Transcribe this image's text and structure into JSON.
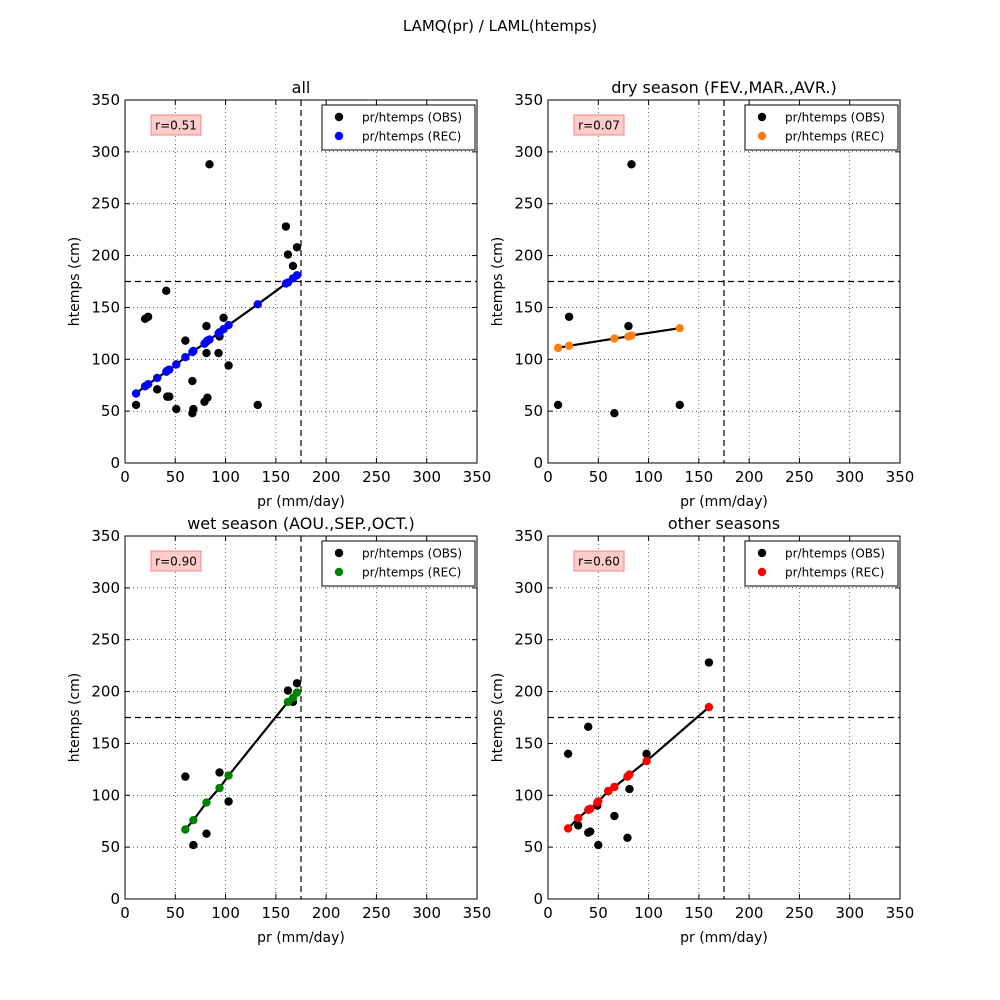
{
  "suptitle": "LAMQ(pr) / LAML(htemps)",
  "chart_data": [
    {
      "type": "scatter",
      "title": "all",
      "xlabel": "pr (mm/day)",
      "ylabel": "htemps (cm)",
      "xlim": [
        0,
        350
      ],
      "ylim": [
        0,
        350
      ],
      "xticks": [
        0,
        50,
        100,
        150,
        200,
        250,
        300,
        350
      ],
      "yticks": [
        0,
        50,
        100,
        150,
        200,
        250,
        300,
        350
      ],
      "grid": true,
      "legend_position": "top-right",
      "correlation_label": "r=0.51",
      "threshold_x": 175,
      "threshold_y": 175,
      "series": [
        {
          "name": "pr/htemps (OBS)",
          "color": "#000000",
          "kind": "scatter",
          "points": [
            [
              11,
              56
            ],
            [
              20,
              139
            ],
            [
              23,
              141
            ],
            [
              32,
              71
            ],
            [
              41,
              166
            ],
            [
              42,
              64
            ],
            [
              44,
              64
            ],
            [
              51,
              52
            ],
            [
              60,
              118
            ],
            [
              67,
              79
            ],
            [
              67,
              48
            ],
            [
              68,
              52
            ],
            [
              79,
              59
            ],
            [
              81,
              132
            ],
            [
              81,
              106
            ],
            [
              82,
              63
            ],
            [
              84,
              288
            ],
            [
              93,
              106
            ],
            [
              94,
              122
            ],
            [
              98,
              140
            ],
            [
              103,
              94
            ],
            [
              132,
              56
            ],
            [
              160,
              228
            ],
            [
              162,
              201
            ],
            [
              167,
              190
            ],
            [
              171,
              208
            ]
          ]
        },
        {
          "name": "pr/htemps (REC)",
          "color": "#0000ff",
          "kind": "scatter-fit",
          "points": [
            [
              11,
              67
            ],
            [
              20,
              74
            ],
            [
              23,
              76
            ],
            [
              32,
              82
            ],
            [
              41,
              88
            ],
            [
              42,
              89
            ],
            [
              44,
              90
            ],
            [
              51,
              95
            ],
            [
              60,
              102
            ],
            [
              67,
              107
            ],
            [
              68,
              108
            ],
            [
              79,
              115
            ],
            [
              81,
              117
            ],
            [
              82,
              118
            ],
            [
              84,
              119
            ],
            [
              93,
              125
            ],
            [
              94,
              126
            ],
            [
              98,
              129
            ],
            [
              103,
              133
            ],
            [
              132,
              153
            ],
            [
              160,
              173
            ],
            [
              162,
              174
            ],
            [
              167,
              178
            ],
            [
              171,
              181
            ]
          ]
        }
      ]
    },
    {
      "type": "scatter",
      "title": "dry season (FEV.,MAR.,AVR.)",
      "xlabel": "pr (mm/day)",
      "ylabel": "htemps (cm)",
      "xlim": [
        0,
        350
      ],
      "ylim": [
        0,
        350
      ],
      "xticks": [
        0,
        50,
        100,
        150,
        200,
        250,
        300,
        350
      ],
      "yticks": [
        0,
        50,
        100,
        150,
        200,
        250,
        300,
        350
      ],
      "grid": true,
      "legend_position": "top-right",
      "correlation_label": "r=0.07",
      "threshold_x": 175,
      "threshold_y": 175,
      "series": [
        {
          "name": "pr/htemps (OBS)",
          "color": "#000000",
          "kind": "scatter",
          "points": [
            [
              10,
              56
            ],
            [
              21,
              141
            ],
            [
              66,
              48
            ],
            [
              80,
              132
            ],
            [
              83,
              288
            ],
            [
              131,
              56
            ]
          ]
        },
        {
          "name": "pr/htemps (REC)",
          "color": "#ff7f0e",
          "kind": "scatter-fit",
          "points": [
            [
              10,
              111
            ],
            [
              21,
              113
            ],
            [
              66,
              120
            ],
            [
              80,
              122
            ],
            [
              83,
              123
            ],
            [
              131,
              130
            ]
          ]
        }
      ]
    },
    {
      "type": "scatter",
      "title": "wet season (AOU.,SEP.,OCT.)",
      "xlabel": "pr (mm/day)",
      "ylabel": "htemps (cm)",
      "xlim": [
        0,
        350
      ],
      "ylim": [
        0,
        350
      ],
      "xticks": [
        0,
        50,
        100,
        150,
        200,
        250,
        300,
        350
      ],
      "yticks": [
        0,
        50,
        100,
        150,
        200,
        250,
        300,
        350
      ],
      "grid": true,
      "legend_position": "top-right",
      "correlation_label": "r=0.90",
      "threshold_x": 175,
      "threshold_y": 175,
      "series": [
        {
          "name": "pr/htemps (OBS)",
          "color": "#000000",
          "kind": "scatter",
          "points": [
            [
              60,
              118
            ],
            [
              68,
              52
            ],
            [
              81,
              63
            ],
            [
              94,
              122
            ],
            [
              103,
              94
            ],
            [
              162,
              201
            ],
            [
              167,
              190
            ],
            [
              171,
              208
            ]
          ]
        },
        {
          "name": "pr/htemps (REC)",
          "color": "#008000",
          "kind": "scatter-fit",
          "points": [
            [
              60,
              67
            ],
            [
              68,
              76
            ],
            [
              81,
              93
            ],
            [
              94,
              107
            ],
            [
              103,
              119
            ],
            [
              162,
              190
            ],
            [
              167,
              194
            ],
            [
              171,
              199
            ]
          ]
        }
      ]
    },
    {
      "type": "scatter",
      "title": "other seasons",
      "xlabel": "pr (mm/day)",
      "ylabel": "htemps (cm)",
      "xlim": [
        0,
        350
      ],
      "ylim": [
        0,
        350
      ],
      "xticks": [
        0,
        50,
        100,
        150,
        200,
        250,
        300,
        350
      ],
      "yticks": [
        0,
        50,
        100,
        150,
        200,
        250,
        300,
        350
      ],
      "grid": true,
      "legend_position": "top-right",
      "correlation_label": "r=0.60",
      "threshold_x": 175,
      "threshold_y": 175,
      "series": [
        {
          "name": "pr/htemps (OBS)",
          "color": "#000000",
          "kind": "scatter",
          "points": [
            [
              20,
              140
            ],
            [
              30,
              71
            ],
            [
              40,
              166
            ],
            [
              40,
              64
            ],
            [
              42,
              65
            ],
            [
              49,
              90
            ],
            [
              50,
              52
            ],
            [
              60,
              104
            ],
            [
              66,
              80
            ],
            [
              79,
              59
            ],
            [
              81,
              106
            ],
            [
              98,
              140
            ],
            [
              160,
              228
            ]
          ]
        },
        {
          "name": "pr/htemps (REC)",
          "color": "#ff0000",
          "kind": "scatter-fit",
          "points": [
            [
              20,
              68
            ],
            [
              30,
              78
            ],
            [
              40,
              86
            ],
            [
              42,
              87
            ],
            [
              49,
              93
            ],
            [
              50,
              94
            ],
            [
              60,
              104
            ],
            [
              66,
              108
            ],
            [
              79,
              118
            ],
            [
              81,
              120
            ],
            [
              98,
              133
            ],
            [
              160,
              185
            ]
          ]
        }
      ]
    }
  ]
}
